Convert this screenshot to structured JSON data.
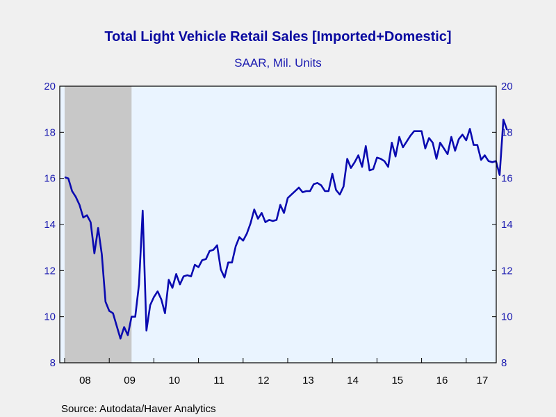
{
  "chart_data": {
    "type": "line",
    "title": "Total Light Vehicle Retail Sales [Imported+Domestic]",
    "subtitle": "SAAR, Mil. Units",
    "source": "Source:  Autodata/Haver Analytics",
    "xlabel": "",
    "ylabel": "",
    "x_start": "2008-01",
    "frequency": "monthly",
    "ylim": [
      8,
      20
    ],
    "y_ticks": [
      8,
      10,
      12,
      14,
      16,
      18,
      20
    ],
    "x_tick_labels": [
      "08",
      "09",
      "10",
      "11",
      "12",
      "13",
      "14",
      "15",
      "16",
      "17"
    ],
    "grid": false,
    "dual_axis_labels": true,
    "recession": {
      "start": "2008-01",
      "end": "2009-06"
    },
    "colors": {
      "line": "#0a0ab0",
      "recession": "#c8c8c8",
      "plot_bg": "#eaf4ff",
      "axis": "#1a1ab0"
    },
    "series": [
      {
        "values": [
          16.05,
          16.0,
          15.45,
          15.2,
          14.85,
          14.3,
          14.4,
          14.1,
          12.75,
          13.85,
          12.7,
          10.65,
          10.25,
          10.15,
          9.6,
          9.05,
          9.55,
          9.2,
          10.0,
          10.0,
          11.4,
          14.6,
          9.4,
          10.5,
          10.85,
          11.1,
          10.75,
          10.15,
          11.6,
          11.25,
          11.85,
          11.4,
          11.75,
          11.8,
          11.75,
          12.25,
          12.15,
          12.45,
          12.5,
          12.85,
          12.9,
          13.1,
          12.05,
          11.7,
          12.35,
          12.35,
          13.05,
          13.45,
          13.3,
          13.6,
          14.05,
          14.65,
          14.25,
          14.5,
          14.1,
          14.2,
          14.15,
          14.2,
          14.85,
          14.5,
          15.15,
          15.3,
          15.45,
          15.6,
          15.4,
          15.45,
          15.45,
          15.75,
          15.8,
          15.7,
          15.45,
          15.45,
          16.2,
          15.5,
          15.3,
          15.65,
          16.85,
          16.45,
          16.7,
          17.0,
          16.5,
          17.4,
          16.35,
          16.4,
          16.9,
          16.85,
          16.75,
          16.5,
          17.55,
          16.95,
          17.8,
          17.35,
          17.6,
          17.85,
          18.05,
          18.05,
          18.05,
          17.3,
          17.75,
          17.55,
          16.85,
          17.55,
          17.3,
          17.05,
          17.8,
          17.2,
          17.7,
          17.9,
          17.65,
          18.15,
          17.45,
          17.45,
          16.8,
          17.0,
          16.75,
          16.7,
          16.75,
          16.15,
          18.55,
          18.1
        ]
      }
    ]
  }
}
